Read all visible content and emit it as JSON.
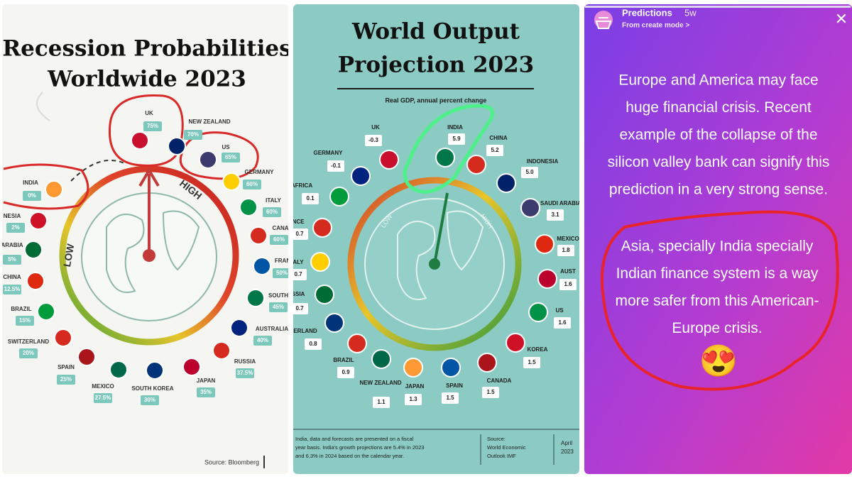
{
  "left": {
    "title": [
      "Recession Probabilities",
      "Worldwide 2023"
    ],
    "low": "LOW",
    "high": "HIGH",
    "countries": [
      {
        "name": "UK",
        "value": "75%"
      },
      {
        "name": "NEW ZEALAND",
        "value": "70%"
      },
      {
        "name": "US",
        "value": "65%"
      },
      {
        "name": "GERMANY",
        "value": "60%"
      },
      {
        "name": "ITALY",
        "value": "60%"
      },
      {
        "name": "CANA",
        "value": "60%"
      },
      {
        "name": "FRAN",
        "value": "50%"
      },
      {
        "name": "SOUTH",
        "value": "45%"
      },
      {
        "name": "AUSTRALIA",
        "value": "40%"
      },
      {
        "name": "RUSSIA",
        "value": "37.5%"
      },
      {
        "name": "JAPAN",
        "value": "35%"
      },
      {
        "name": "SOUTH KOREA",
        "value": "30%"
      },
      {
        "name": "MEXICO",
        "value": "27.5%"
      },
      {
        "name": "SPAIN",
        "value": "25%"
      },
      {
        "name": "SWITZERLAND",
        "value": "20%"
      },
      {
        "name": "BRAZIL",
        "value": "15%"
      },
      {
        "name": "CHINA",
        "value": "12.5%"
      },
      {
        "name": "ARABIA",
        "value": "5%"
      },
      {
        "name": "NESIA",
        "value": "2%"
      },
      {
        "name": "INDIA",
        "value": "0%"
      }
    ],
    "source": "Source: Bloomberg"
  },
  "middle": {
    "title": [
      "World Output",
      "Projection 2023"
    ],
    "subtitle": "Real GDP, annual percent change",
    "low": "LOW",
    "high": "HIGH",
    "countries": [
      {
        "name": "UK",
        "value": "-0.3"
      },
      {
        "name": "INDIA",
        "value": "5.9"
      },
      {
        "name": "CHINA",
        "value": "5.2"
      },
      {
        "name": "INDONESIA",
        "value": "5.0"
      },
      {
        "name": "GERMANY",
        "value": "-0.1"
      },
      {
        "name": "AFRICA",
        "value": "0.1"
      },
      {
        "name": "SAUDI ARABIA",
        "value": "3.1"
      },
      {
        "name": "NCE",
        "value": "0.7"
      },
      {
        "name": "MEXICO",
        "value": "1.8"
      },
      {
        "name": "ALY",
        "value": "0.7"
      },
      {
        "name": "AUST",
        "value": "1.6"
      },
      {
        "name": "SSIA",
        "value": "0.7"
      },
      {
        "name": "US",
        "value": "1.6"
      },
      {
        "name": "ERLAND",
        "value": "0.8"
      },
      {
        "name": "KOREA",
        "value": "1.5"
      },
      {
        "name": "BRAZIL",
        "value": "0.9"
      },
      {
        "name": "NEW ZEALAND",
        "value": "1.1"
      },
      {
        "name": "JAPAN",
        "value": "1.3"
      },
      {
        "name": "SPAIN",
        "value": "1.5"
      },
      {
        "name": "CANADA",
        "value": "1.5"
      }
    ],
    "footnote": [
      "India, data and forecasts are presented on a fiscal",
      "year basis. India's growth projections are 5.4% in 2023",
      "and 6.3% in 2024 based on the calendar year."
    ],
    "source": [
      "Source:",
      "World Economic",
      "Outlook IMF"
    ],
    "date": [
      "April",
      "2023"
    ]
  },
  "right": {
    "account": "Predictions",
    "age": "5w",
    "mode": "From create mode >",
    "close": "✕",
    "paragraph1": [
      "Europe and America may face",
      "huge financial crisis. Recent",
      "example of the collapse of the",
      "silicon valley bank can signify this",
      "prediction in a very strong sense."
    ],
    "paragraph2": [
      "Asia, specially India specially",
      "Indian finance system is a way",
      "more safer from this American-",
      "Europe crisis."
    ],
    "emoji": "😍"
  }
}
